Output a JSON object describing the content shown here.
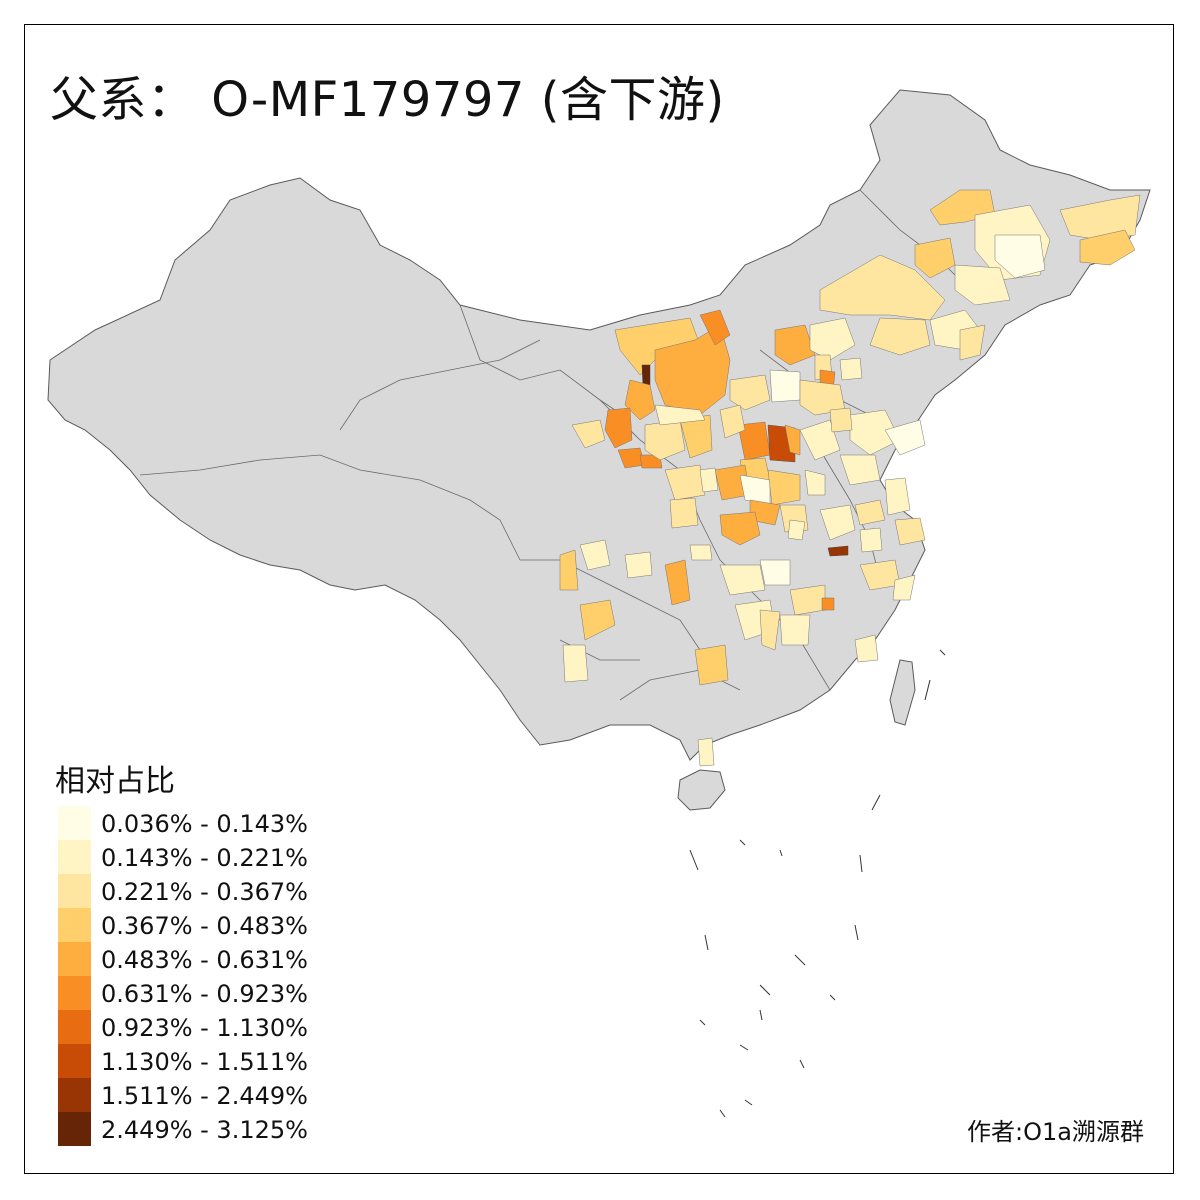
{
  "title": "父系： O-MF179797 (含下游)",
  "legend": {
    "title": "相对占比",
    "items": [
      {
        "label": "0.036% - 0.143%",
        "color": "#fffde6"
      },
      {
        "label": "0.143% - 0.221%",
        "color": "#fff4c4"
      },
      {
        "label": "0.221% - 0.367%",
        "color": "#fee5a0"
      },
      {
        "label": "0.367% - 0.483%",
        "color": "#fecf6a"
      },
      {
        "label": "0.483% - 0.631%",
        "color": "#fdae3e"
      },
      {
        "label": "0.631% - 0.923%",
        "color": "#f98e24"
      },
      {
        "label": "0.923% - 1.130%",
        "color": "#e86c12"
      },
      {
        "label": "1.130% - 1.511%",
        "color": "#c94c06"
      },
      {
        "label": "1.511% - 2.449%",
        "color": "#993404"
      },
      {
        "label": "2.449% - 3.125%",
        "color": "#662506"
      }
    ]
  },
  "credit": "作者:O1a溯源群",
  "colors": {
    "no_data": "#d9d9d9",
    "border": "#5a5a5a",
    "frame": "#000000"
  }
}
